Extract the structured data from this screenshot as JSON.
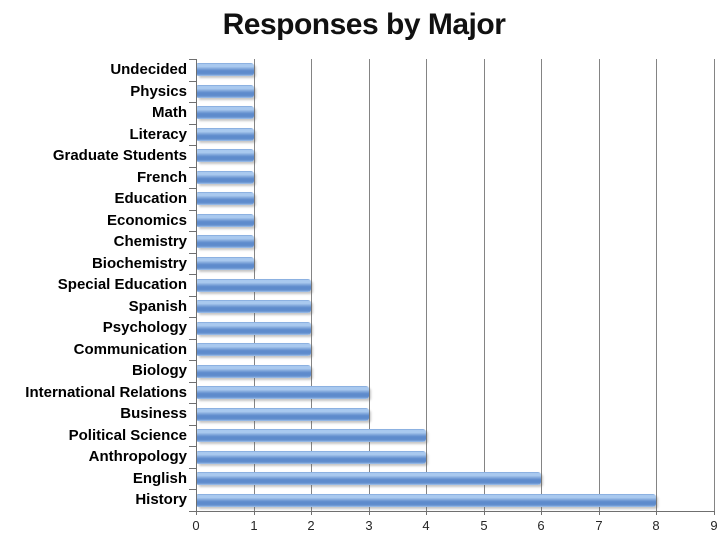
{
  "slide": {
    "background": "#FFFFFF"
  },
  "chart_data": {
    "type": "bar",
    "orientation": "horizontal",
    "title": "Responses by Major",
    "categories": [
      "Undecided",
      "Physics",
      "Math",
      "Literacy",
      "Graduate Students",
      "French",
      "Education",
      "Economics",
      "Chemistry",
      "Biochemistry",
      "Special Education",
      "Spanish",
      "Psychology",
      "Communication",
      "Biology",
      "International Relations",
      "Business",
      "Political Science",
      "Anthropology",
      "English",
      "History"
    ],
    "values": [
      1,
      1,
      1,
      1,
      1,
      1,
      1,
      1,
      1,
      1,
      2,
      2,
      2,
      2,
      2,
      3,
      3,
      4,
      4,
      6,
      8
    ],
    "xlabel": "",
    "ylabel": "",
    "xlim": [
      0,
      9
    ],
    "xticks": [
      0,
      1,
      2,
      3,
      4,
      5,
      6,
      7,
      8,
      9
    ],
    "grid": "vertical",
    "legend": "none",
    "colors": {
      "bar_mid": "#7AA2D8",
      "bar_highlight": "#A9C9EF",
      "bar_dark": "#5E8BCC",
      "gridline": "#848484",
      "axis": "#6F6F6F",
      "title_text": "#111111",
      "category_text": "#000000",
      "tick_text": "#262626",
      "background": "#FFFFFF"
    }
  }
}
